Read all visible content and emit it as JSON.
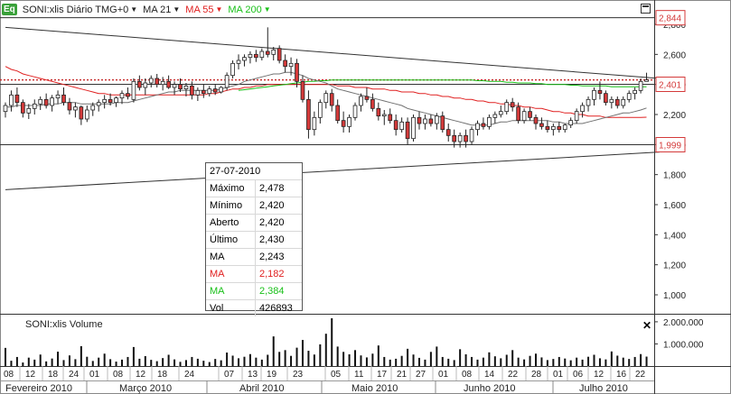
{
  "header": {
    "logo": "Eq",
    "symbol": "SONI:xlis Diário TMG+0",
    "ma1": "MA 21",
    "ma2": "MA 55",
    "ma3": "MA 200"
  },
  "tooltip": {
    "date": "27-07-2010",
    "rows": [
      {
        "k": "Máximo",
        "v": "2,478"
      },
      {
        "k": "Mínimo",
        "v": "2,420"
      },
      {
        "k": "Aberto",
        "v": "2,420"
      },
      {
        "k": "Último",
        "v": "2,430"
      },
      {
        "k": "MA",
        "v": "2,243"
      },
      {
        "k": "MA",
        "v": "2,182"
      },
      {
        "k": "MA",
        "v": "2,384"
      },
      {
        "k": "Vol",
        "v": "426893"
      }
    ]
  },
  "volume": {
    "title": "SONI:xlis Volume"
  },
  "colors": {
    "up": "#ffffff",
    "down": "#d43a3a",
    "ma21": "#707070",
    "ma55": "#e02020",
    "ma200": "#19c019",
    "tag": "#d43a3a"
  },
  "chart_data": {
    "type": "candlestick",
    "price_axis": {
      "min": 1.6,
      "max": 2.9,
      "ticks": [
        "2,800",
        "2,600",
        "2,400",
        "2,200",
        "2,000",
        "1,800",
        "1,600",
        "1,400",
        "1,200",
        "1,000"
      ]
    },
    "volume_axis": {
      "max": 2200000,
      "ticks": [
        "2.000.000",
        "1.000.000"
      ]
    },
    "x_axis": {
      "day_labels": [
        "08",
        "12",
        "18",
        "24",
        "01",
        "08",
        "12",
        "18",
        "24",
        "07",
        "13",
        "19",
        "23",
        "05",
        "11",
        "17",
        "21",
        "27",
        "01",
        "08",
        "14",
        "22",
        "28",
        "01",
        "06",
        "12",
        "16",
        "22"
      ],
      "month_labels": [
        "Fevereiro 2010",
        "Março 2010",
        "Abril 2010",
        "Maio 2010",
        "Junho 2010",
        "Julho 2010"
      ],
      "grid": true
    },
    "price_tags": [
      {
        "label": "2,844",
        "value": 2.844
      },
      {
        "label": "2,401",
        "value": 2.401
      },
      {
        "label": "1,999",
        "value": 1.999
      }
    ],
    "level_lines": [
      2.844,
      2.43,
      2.401,
      1.999
    ],
    "trend_lines": [
      {
        "from": [
          0,
          2.78
        ],
        "to": [
          139,
          2.44
        ]
      },
      {
        "from": [
          0,
          1.7
        ],
        "to": [
          139,
          1.95
        ]
      }
    ],
    "candles": [
      {
        "o": 2.22,
        "h": 2.28,
        "l": 2.18,
        "c": 2.26
      },
      {
        "o": 2.26,
        "h": 2.36,
        "l": 2.22,
        "c": 2.33
      },
      {
        "o": 2.33,
        "h": 2.38,
        "l": 2.25,
        "c": 2.28
      },
      {
        "o": 2.28,
        "h": 2.3,
        "l": 2.18,
        "c": 2.21
      },
      {
        "o": 2.21,
        "h": 2.27,
        "l": 2.17,
        "c": 2.24
      },
      {
        "o": 2.24,
        "h": 2.3,
        "l": 2.2,
        "c": 2.27
      },
      {
        "o": 2.27,
        "h": 2.32,
        "l": 2.23,
        "c": 2.3
      },
      {
        "o": 2.3,
        "h": 2.34,
        "l": 2.24,
        "c": 2.26
      },
      {
        "o": 2.26,
        "h": 2.33,
        "l": 2.22,
        "c": 2.31
      },
      {
        "o": 2.31,
        "h": 2.36,
        "l": 2.27,
        "c": 2.33
      },
      {
        "o": 2.33,
        "h": 2.38,
        "l": 2.26,
        "c": 2.28
      },
      {
        "o": 2.28,
        "h": 2.31,
        "l": 2.2,
        "c": 2.23
      },
      {
        "o": 2.23,
        "h": 2.28,
        "l": 2.18,
        "c": 2.25
      },
      {
        "o": 2.25,
        "h": 2.26,
        "l": 2.13,
        "c": 2.17
      },
      {
        "o": 2.17,
        "h": 2.26,
        "l": 2.15,
        "c": 2.23
      },
      {
        "o": 2.23,
        "h": 2.28,
        "l": 2.19,
        "c": 2.26
      },
      {
        "o": 2.26,
        "h": 2.3,
        "l": 2.22,
        "c": 2.28
      },
      {
        "o": 2.28,
        "h": 2.33,
        "l": 2.24,
        "c": 2.3
      },
      {
        "o": 2.3,
        "h": 2.34,
        "l": 2.26,
        "c": 2.28
      },
      {
        "o": 2.28,
        "h": 2.32,
        "l": 2.25,
        "c": 2.31
      },
      {
        "o": 2.31,
        "h": 2.36,
        "l": 2.27,
        "c": 2.34
      },
      {
        "o": 2.34,
        "h": 2.38,
        "l": 2.3,
        "c": 2.32
      },
      {
        "o": 2.3,
        "h": 2.44,
        "l": 2.28,
        "c": 2.42
      },
      {
        "o": 2.42,
        "h": 2.46,
        "l": 2.36,
        "c": 2.38
      },
      {
        "o": 2.38,
        "h": 2.44,
        "l": 2.33,
        "c": 2.41
      },
      {
        "o": 2.41,
        "h": 2.46,
        "l": 2.38,
        "c": 2.44
      },
      {
        "o": 2.44,
        "h": 2.47,
        "l": 2.38,
        "c": 2.4
      },
      {
        "o": 2.4,
        "h": 2.45,
        "l": 2.36,
        "c": 2.42
      },
      {
        "o": 2.42,
        "h": 2.46,
        "l": 2.37,
        "c": 2.38
      },
      {
        "o": 2.38,
        "h": 2.42,
        "l": 2.33,
        "c": 2.4
      },
      {
        "o": 2.4,
        "h": 2.44,
        "l": 2.35,
        "c": 2.37
      },
      {
        "o": 2.37,
        "h": 2.41,
        "l": 2.32,
        "c": 2.39
      },
      {
        "o": 2.39,
        "h": 2.42,
        "l": 2.3,
        "c": 2.33
      },
      {
        "o": 2.33,
        "h": 2.38,
        "l": 2.29,
        "c": 2.36
      },
      {
        "o": 2.36,
        "h": 2.4,
        "l": 2.31,
        "c": 2.34
      },
      {
        "o": 2.34,
        "h": 2.39,
        "l": 2.32,
        "c": 2.37
      },
      {
        "o": 2.37,
        "h": 2.4,
        "l": 2.33,
        "c": 2.35
      },
      {
        "o": 2.35,
        "h": 2.39,
        "l": 2.34,
        "c": 2.38
      },
      {
        "o": 2.38,
        "h": 2.48,
        "l": 2.36,
        "c": 2.46
      },
      {
        "o": 2.46,
        "h": 2.56,
        "l": 2.44,
        "c": 2.54
      },
      {
        "o": 2.54,
        "h": 2.6,
        "l": 2.5,
        "c": 2.56
      },
      {
        "o": 2.56,
        "h": 2.6,
        "l": 2.52,
        "c": 2.58
      },
      {
        "o": 2.58,
        "h": 2.62,
        "l": 2.54,
        "c": 2.6
      },
      {
        "o": 2.6,
        "h": 2.63,
        "l": 2.55,
        "c": 2.58
      },
      {
        "o": 2.58,
        "h": 2.64,
        "l": 2.56,
        "c": 2.62
      },
      {
        "o": 2.62,
        "h": 2.78,
        "l": 2.58,
        "c": 2.6
      },
      {
        "o": 2.6,
        "h": 2.65,
        "l": 2.56,
        "c": 2.63
      },
      {
        "o": 2.64,
        "h": 2.66,
        "l": 2.54,
        "c": 2.56
      },
      {
        "o": 2.56,
        "h": 2.6,
        "l": 2.48,
        "c": 2.52
      },
      {
        "o": 2.52,
        "h": 2.58,
        "l": 2.46,
        "c": 2.54
      },
      {
        "o": 2.54,
        "h": 2.57,
        "l": 2.38,
        "c": 2.42
      },
      {
        "o": 2.42,
        "h": 2.46,
        "l": 2.28,
        "c": 2.3
      },
      {
        "o": 2.3,
        "h": 2.36,
        "l": 2.04,
        "c": 2.1
      },
      {
        "o": 2.1,
        "h": 2.22,
        "l": 2.06,
        "c": 2.18
      },
      {
        "o": 2.18,
        "h": 2.3,
        "l": 2.14,
        "c": 2.28
      },
      {
        "o": 2.28,
        "h": 2.36,
        "l": 2.24,
        "c": 2.34
      },
      {
        "o": 2.34,
        "h": 2.37,
        "l": 2.22,
        "c": 2.26
      },
      {
        "o": 2.26,
        "h": 2.3,
        "l": 2.14,
        "c": 2.16
      },
      {
        "o": 2.16,
        "h": 2.22,
        "l": 2.08,
        "c": 2.12
      },
      {
        "o": 2.12,
        "h": 2.2,
        "l": 2.08,
        "c": 2.18
      },
      {
        "o": 2.18,
        "h": 2.28,
        "l": 2.16,
        "c": 2.26
      },
      {
        "o": 2.26,
        "h": 2.34,
        "l": 2.22,
        "c": 2.32
      },
      {
        "o": 2.32,
        "h": 2.38,
        "l": 2.28,
        "c": 2.3
      },
      {
        "o": 2.3,
        "h": 2.34,
        "l": 2.22,
        "c": 2.24
      },
      {
        "o": 2.24,
        "h": 2.28,
        "l": 2.16,
        "c": 2.19
      },
      {
        "o": 2.19,
        "h": 2.23,
        "l": 2.13,
        "c": 2.2
      },
      {
        "o": 2.2,
        "h": 2.24,
        "l": 2.14,
        "c": 2.16
      },
      {
        "o": 2.16,
        "h": 2.2,
        "l": 2.06,
        "c": 2.1
      },
      {
        "o": 2.1,
        "h": 2.18,
        "l": 2.08,
        "c": 2.15
      },
      {
        "o": 2.15,
        "h": 2.18,
        "l": 2.0,
        "c": 2.04
      },
      {
        "o": 2.04,
        "h": 2.2,
        "l": 2.02,
        "c": 2.18
      },
      {
        "o": 2.18,
        "h": 2.22,
        "l": 2.1,
        "c": 2.14
      },
      {
        "o": 2.14,
        "h": 2.2,
        "l": 2.1,
        "c": 2.17
      },
      {
        "o": 2.17,
        "h": 2.2,
        "l": 2.12,
        "c": 2.14
      },
      {
        "o": 2.14,
        "h": 2.21,
        "l": 2.1,
        "c": 2.19
      },
      {
        "o": 2.19,
        "h": 2.22,
        "l": 2.08,
        "c": 2.1
      },
      {
        "o": 2.1,
        "h": 2.14,
        "l": 2.02,
        "c": 2.06
      },
      {
        "o": 2.06,
        "h": 2.1,
        "l": 1.98,
        "c": 2.02
      },
      {
        "o": 2.02,
        "h": 2.08,
        "l": 1.98,
        "c": 2.06
      },
      {
        "o": 2.06,
        "h": 2.1,
        "l": 1.98,
        "c": 2.02
      },
      {
        "o": 2.02,
        "h": 2.12,
        "l": 2.0,
        "c": 2.1
      },
      {
        "o": 2.1,
        "h": 2.16,
        "l": 2.06,
        "c": 2.14
      },
      {
        "o": 2.14,
        "h": 2.18,
        "l": 2.1,
        "c": 2.12
      },
      {
        "o": 2.12,
        "h": 2.2,
        "l": 2.1,
        "c": 2.18
      },
      {
        "o": 2.18,
        "h": 2.22,
        "l": 2.14,
        "c": 2.2
      },
      {
        "o": 2.2,
        "h": 2.26,
        "l": 2.18,
        "c": 2.22
      },
      {
        "o": 2.22,
        "h": 2.3,
        "l": 2.2,
        "c": 2.28
      },
      {
        "o": 2.28,
        "h": 2.31,
        "l": 2.22,
        "c": 2.25
      },
      {
        "o": 2.25,
        "h": 2.28,
        "l": 2.14,
        "c": 2.16
      },
      {
        "o": 2.16,
        "h": 2.24,
        "l": 2.14,
        "c": 2.22
      },
      {
        "o": 2.22,
        "h": 2.25,
        "l": 2.16,
        "c": 2.18
      },
      {
        "o": 2.18,
        "h": 2.2,
        "l": 2.1,
        "c": 2.14
      },
      {
        "o": 2.14,
        "h": 2.18,
        "l": 2.1,
        "c": 2.12
      },
      {
        "o": 2.12,
        "h": 2.16,
        "l": 2.08,
        "c": 2.1
      },
      {
        "o": 2.1,
        "h": 2.14,
        "l": 2.06,
        "c": 2.12
      },
      {
        "o": 2.12,
        "h": 2.15,
        "l": 2.08,
        "c": 2.1
      },
      {
        "o": 2.1,
        "h": 2.14,
        "l": 2.08,
        "c": 2.13
      },
      {
        "o": 2.13,
        "h": 2.18,
        "l": 2.11,
        "c": 2.16
      },
      {
        "o": 2.16,
        "h": 2.24,
        "l": 2.14,
        "c": 2.22
      },
      {
        "o": 2.22,
        "h": 2.28,
        "l": 2.18,
        "c": 2.26
      },
      {
        "o": 2.26,
        "h": 2.32,
        "l": 2.22,
        "c": 2.3
      },
      {
        "o": 2.3,
        "h": 2.38,
        "l": 2.26,
        "c": 2.36
      },
      {
        "o": 2.36,
        "h": 2.42,
        "l": 2.3,
        "c": 2.34
      },
      {
        "o": 2.34,
        "h": 2.36,
        "l": 2.26,
        "c": 2.28
      },
      {
        "o": 2.28,
        "h": 2.32,
        "l": 2.24,
        "c": 2.3
      },
      {
        "o": 2.3,
        "h": 2.32,
        "l": 2.24,
        "c": 2.26
      },
      {
        "o": 2.26,
        "h": 2.32,
        "l": 2.24,
        "c": 2.3
      },
      {
        "o": 2.3,
        "h": 2.36,
        "l": 2.28,
        "c": 2.34
      },
      {
        "o": 2.34,
        "h": 2.38,
        "l": 2.3,
        "c": 2.36
      },
      {
        "o": 2.36,
        "h": 2.44,
        "l": 2.34,
        "c": 2.42
      },
      {
        "o": 2.42,
        "h": 2.478,
        "l": 2.42,
        "c": 2.43
      }
    ],
    "ma21": [
      2.25,
      2.25,
      2.26,
      2.26,
      2.26,
      2.26,
      2.26,
      2.27,
      2.27,
      2.27,
      2.28,
      2.28,
      2.28,
      2.27,
      2.27,
      2.27,
      2.27,
      2.27,
      2.27,
      2.28,
      2.28,
      2.28,
      2.29,
      2.3,
      2.31,
      2.32,
      2.33,
      2.34,
      2.35,
      2.35,
      2.36,
      2.36,
      2.36,
      2.36,
      2.36,
      2.36,
      2.36,
      2.37,
      2.38,
      2.39,
      2.4,
      2.42,
      2.43,
      2.44,
      2.45,
      2.46,
      2.47,
      2.47,
      2.48,
      2.48,
      2.47,
      2.46,
      2.44,
      2.43,
      2.42,
      2.41,
      2.39,
      2.37,
      2.36,
      2.35,
      2.34,
      2.33,
      2.32,
      2.31,
      2.3,
      2.29,
      2.28,
      2.27,
      2.26,
      2.24,
      2.23,
      2.22,
      2.21,
      2.2,
      2.19,
      2.18,
      2.17,
      2.16,
      2.15,
      2.14,
      2.13,
      2.13,
      2.13,
      2.13,
      2.14,
      2.15,
      2.15,
      2.16,
      2.16,
      2.16,
      2.16,
      2.16,
      2.16,
      2.16,
      2.15,
      2.15,
      2.14,
      2.14,
      2.14,
      2.14,
      2.15,
      2.16,
      2.17,
      2.18,
      2.19,
      2.2,
      2.21,
      2.21,
      2.22,
      2.23,
      2.243
    ],
    "ma55": [
      2.52,
      2.5,
      2.49,
      2.47,
      2.46,
      2.45,
      2.44,
      2.43,
      2.42,
      2.41,
      2.4,
      2.39,
      2.38,
      2.37,
      2.36,
      2.35,
      2.34,
      2.34,
      2.33,
      2.33,
      2.33,
      2.33,
      2.33,
      2.33,
      2.33,
      2.33,
      2.33,
      2.33,
      2.33,
      2.33,
      2.33,
      2.33,
      2.33,
      2.33,
      2.33,
      2.34,
      2.34,
      2.35,
      2.36,
      2.37,
      2.37,
      2.38,
      2.38,
      2.39,
      2.39,
      2.4,
      2.4,
      2.4,
      2.4,
      2.4,
      2.4,
      2.4,
      2.4,
      2.4,
      2.4,
      2.4,
      2.4,
      2.39,
      2.39,
      2.39,
      2.38,
      2.38,
      2.38,
      2.37,
      2.37,
      2.37,
      2.36,
      2.36,
      2.35,
      2.35,
      2.35,
      2.34,
      2.34,
      2.33,
      2.33,
      2.32,
      2.32,
      2.31,
      2.31,
      2.3,
      2.3,
      2.29,
      2.29,
      2.28,
      2.28,
      2.27,
      2.27,
      2.26,
      2.26,
      2.25,
      2.25,
      2.24,
      2.24,
      2.23,
      2.22,
      2.22,
      2.21,
      2.21,
      2.2,
      2.2,
      2.19,
      2.19,
      2.19,
      2.18,
      2.18,
      2.18,
      2.18,
      2.18,
      2.18,
      2.18,
      2.182
    ],
    "ma200_start_index": 40,
    "ma200": [
      2.36,
      2.365,
      2.37,
      2.375,
      2.38,
      2.385,
      2.39,
      2.395,
      2.4,
      2.405,
      2.41,
      2.415,
      2.42,
      2.42,
      2.425,
      2.425,
      2.43,
      2.43,
      2.43,
      2.43,
      2.43,
      2.43,
      2.43,
      2.43,
      2.43,
      2.43,
      2.43,
      2.43,
      2.43,
      2.43,
      2.43,
      2.43,
      2.43,
      2.43,
      2.43,
      2.43,
      2.43,
      2.43,
      2.43,
      2.43,
      2.43,
      2.425,
      2.425,
      2.42,
      2.42,
      2.42,
      2.415,
      2.415,
      2.41,
      2.41,
      2.41,
      2.405,
      2.405,
      2.4,
      2.4,
      2.4,
      2.4,
      2.395,
      2.395,
      2.39,
      2.39,
      2.39,
      2.39,
      2.39,
      2.385,
      2.385,
      2.385,
      2.385,
      2.384,
      2.384,
      2.384
    ],
    "volumes": [
      820000,
      240000,
      410000,
      160000,
      380000,
      290000,
      520000,
      210000,
      340000,
      650000,
      270000,
      480000,
      310000,
      900000,
      420000,
      230000,
      380000,
      560000,
      310000,
      200000,
      290000,
      410000,
      860000,
      330000,
      450000,
      280000,
      220000,
      360000,
      510000,
      300000,
      190000,
      270000,
      410000,
      330000,
      240000,
      180000,
      320000,
      260000,
      610000,
      470000,
      350000,
      420000,
      540000,
      380000,
      290000,
      510000,
      1340000,
      640000,
      720000,
      460000,
      830000,
      1180000,
      690000,
      520000,
      980000,
      1460000,
      2160000,
      880000,
      640000,
      530000,
      720000,
      480000,
      390000,
      560000,
      930000,
      410000,
      290000,
      330000,
      460000,
      780000,
      520000,
      370000,
      290000,
      640000,
      880000,
      410000,
      330000,
      270000,
      760000,
      530000,
      410000,
      290000,
      380000,
      620000,
      440000,
      350000,
      510000,
      720000,
      380000,
      300000,
      460000,
      560000,
      390000,
      270000,
      320000,
      410000,
      340000,
      260000,
      380000,
      290000,
      420000,
      510000,
      350000,
      300000,
      660000,
      470000,
      380000,
      320000,
      410000,
      540000,
      426893
    ]
  }
}
